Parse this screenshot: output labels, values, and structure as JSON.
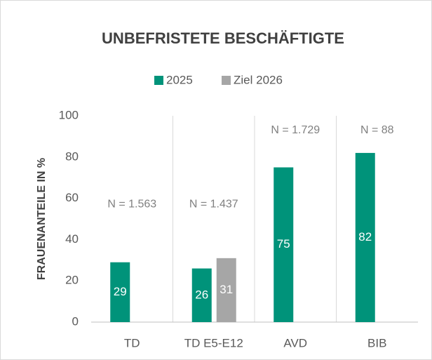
{
  "chart_data": {
    "type": "bar",
    "title": "UNBEFRISTETE BESCHÄFTIGTE",
    "y_label": "FRAUENANTEILE IN %",
    "categories": [
      "TD",
      "TD E5-E12",
      "AVD",
      "BIB"
    ],
    "series": [
      {
        "name": "2025",
        "color": "#00937a",
        "values": [
          29,
          26,
          75,
          82
        ]
      },
      {
        "name": "Ziel 2026",
        "color": "#a6a6a6",
        "values": [
          null,
          31,
          null,
          null
        ]
      }
    ],
    "annotations": [
      "N = 1.563",
      "N = 1.437",
      "N = 1.729",
      "N = 88"
    ],
    "ylim": [
      0,
      100
    ],
    "yticks": [
      0,
      20,
      40,
      60,
      80,
      100
    ],
    "legend": "top",
    "category_dividers": true
  }
}
